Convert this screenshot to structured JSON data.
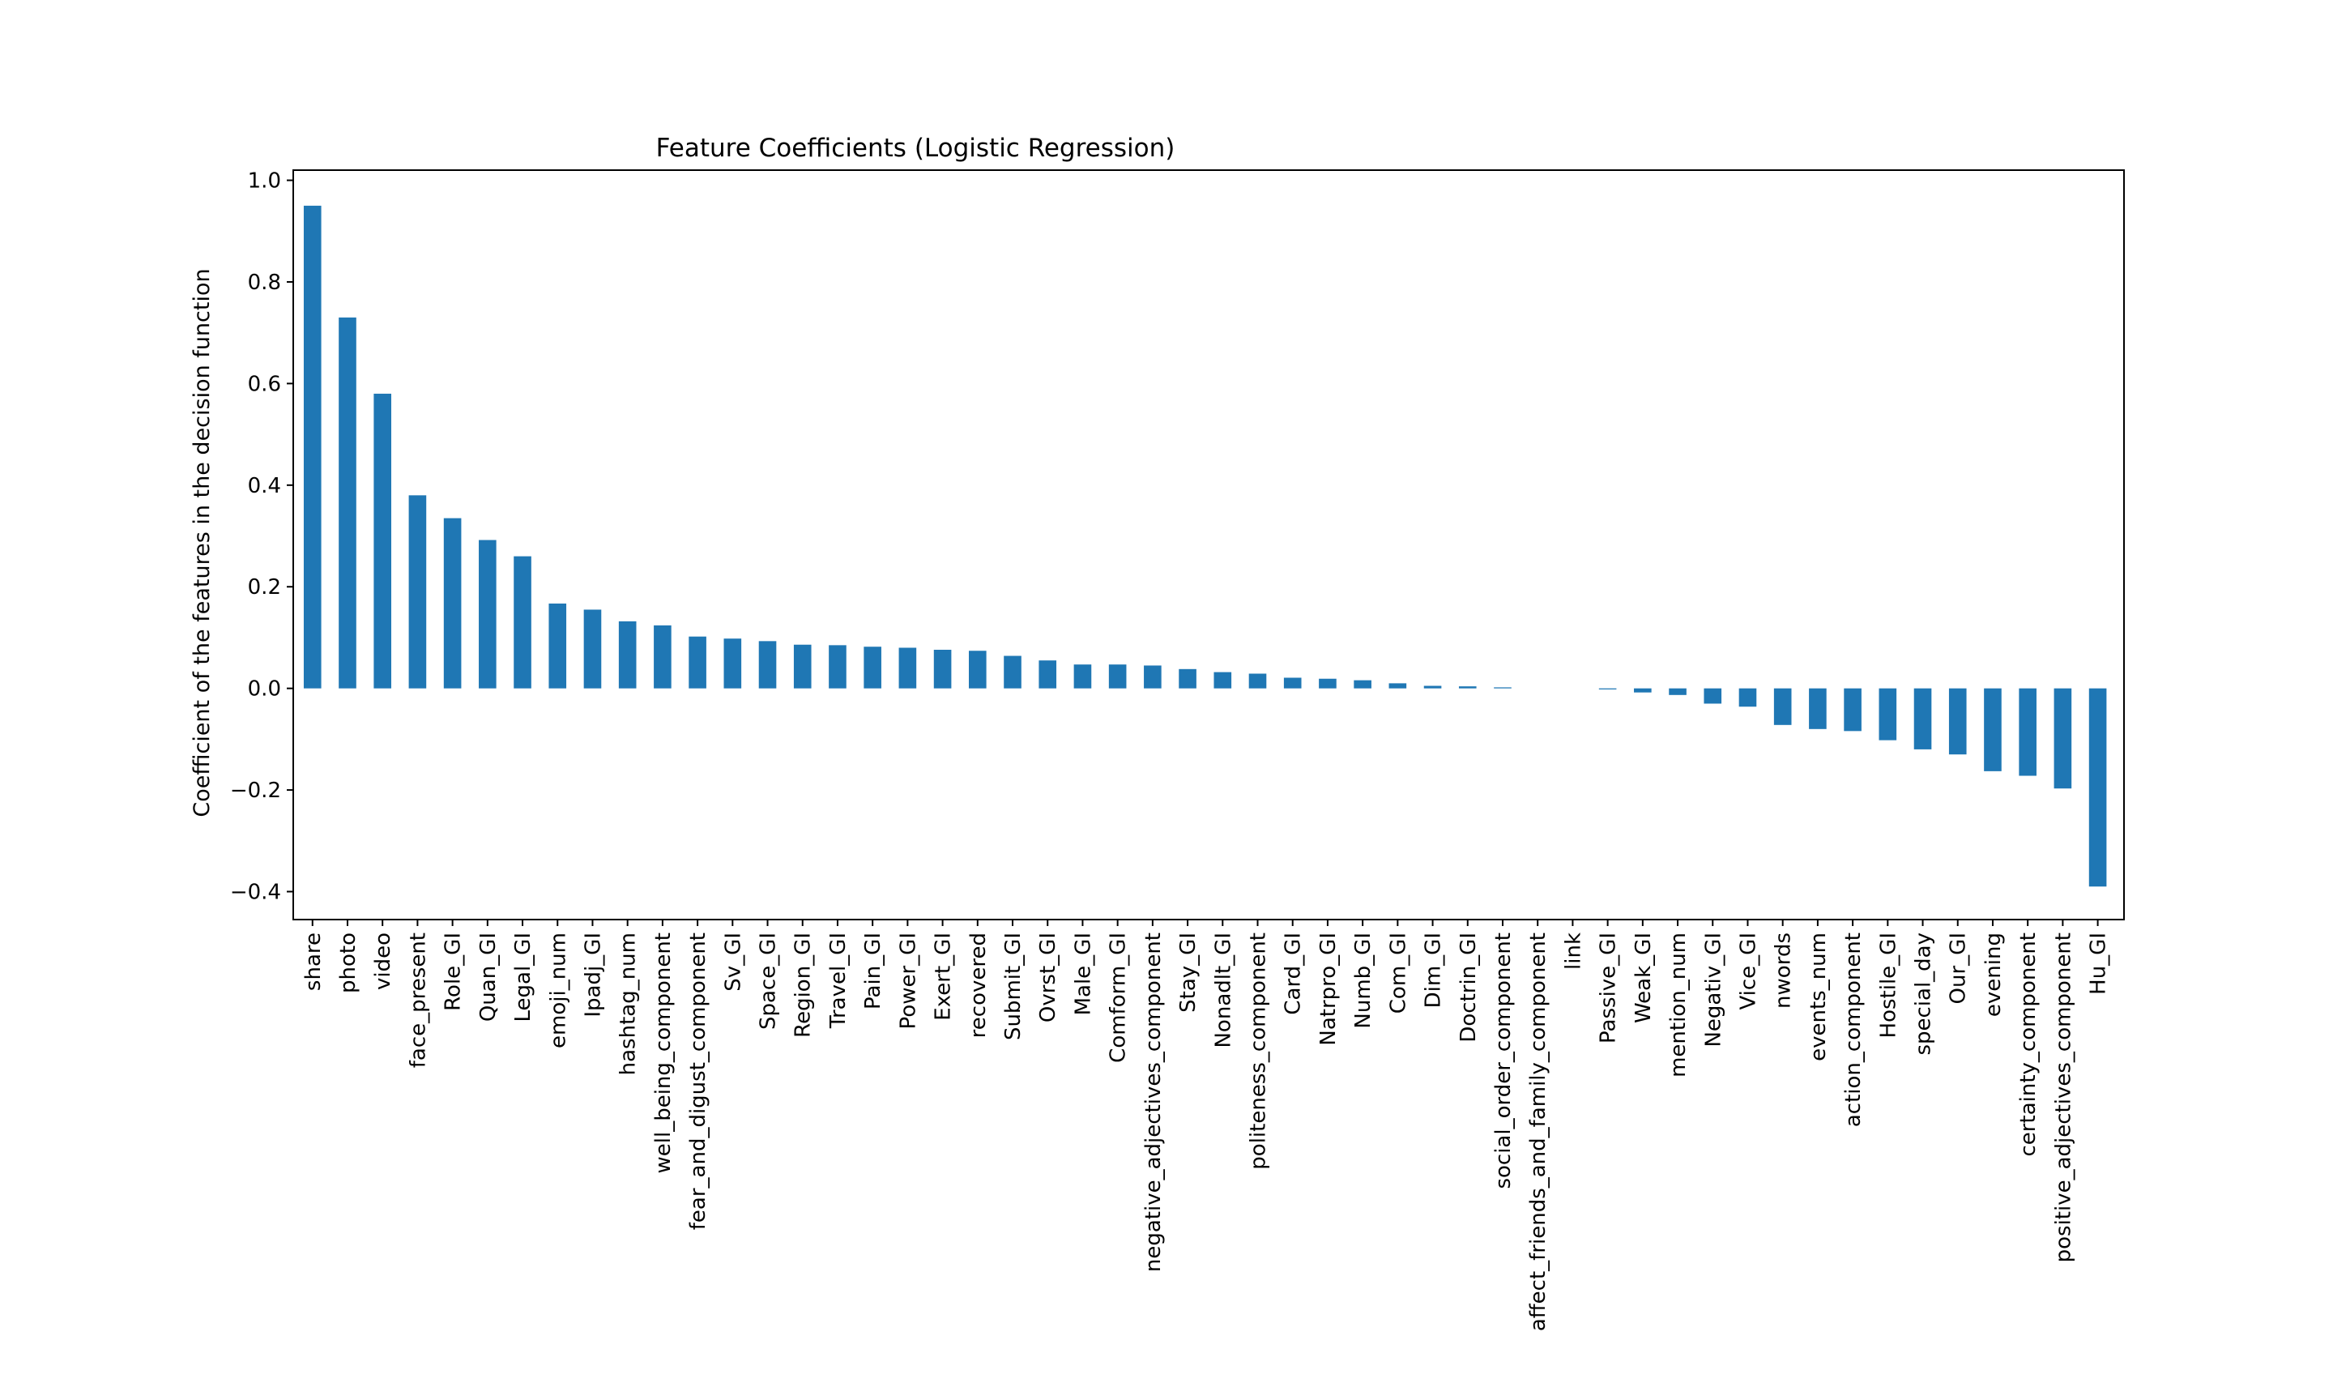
{
  "chart_data": {
    "type": "bar",
    "title": "Feature Coefficients (Logistic Regression)",
    "xlabel": "",
    "ylabel": "Coefficient of the features in the decision function",
    "ylim": [
      -0.455,
      1.02
    ],
    "yticks": [
      -0.4,
      -0.2,
      0.0,
      0.2,
      0.4,
      0.6,
      0.8,
      1.0
    ],
    "ytick_labels": [
      "−0.4",
      "−0.2",
      "0.0",
      "0.2",
      "0.4",
      "0.6",
      "0.8",
      "1.0"
    ],
    "grid": false,
    "bar_color": "#1f77b4",
    "categories": [
      "share",
      "photo",
      "video",
      "face_present",
      "Role_GI",
      "Quan_GI",
      "Legal_GI",
      "emoji_num",
      "Ipadj_GI",
      "hashtag_num",
      "well_being_component",
      "fear_and_digust_component",
      "Sv_GI",
      "Space_GI",
      "Region_GI",
      "Travel_GI",
      "Pain_GI",
      "Power_GI",
      "Exert_GI",
      "recovered",
      "Submit_GI",
      "Ovrst_GI",
      "Male_GI",
      "Comform_GI",
      "negative_adjectives_component",
      "Stay_GI",
      "Nonadlt_GI",
      "politeness_component",
      "Card_GI",
      "Natrpro_GI",
      "Numb_GI",
      "Com_GI",
      "Dim_GI",
      "Doctrin_GI",
      "social_order_component",
      "affect_friends_and_family_component",
      "link",
      "Passive_GI",
      "Weak_GI",
      "mention_num",
      "Negativ_GI",
      "Vice_GI",
      "nwords",
      "events_num",
      "action_component",
      "Hostile_GI",
      "special_day",
      "Our_GI",
      "evening",
      "certainty_component",
      "positive_adjectives_component",
      "Hu_GI"
    ],
    "values": [
      0.95,
      0.73,
      0.58,
      0.38,
      0.335,
      0.292,
      0.26,
      0.167,
      0.155,
      0.132,
      0.124,
      0.102,
      0.098,
      0.093,
      0.086,
      0.085,
      0.082,
      0.08,
      0.076,
      0.074,
      0.064,
      0.055,
      0.047,
      0.047,
      0.045,
      0.038,
      0.032,
      0.029,
      0.021,
      0.019,
      0.016,
      0.01,
      0.005,
      0.004,
      0.002,
      0.0,
      0.0,
      -0.002,
      -0.008,
      -0.013,
      -0.03,
      -0.036,
      -0.072,
      -0.08,
      -0.084,
      -0.102,
      -0.12,
      -0.13,
      -0.163,
      -0.172,
      -0.197,
      -0.39
    ]
  }
}
